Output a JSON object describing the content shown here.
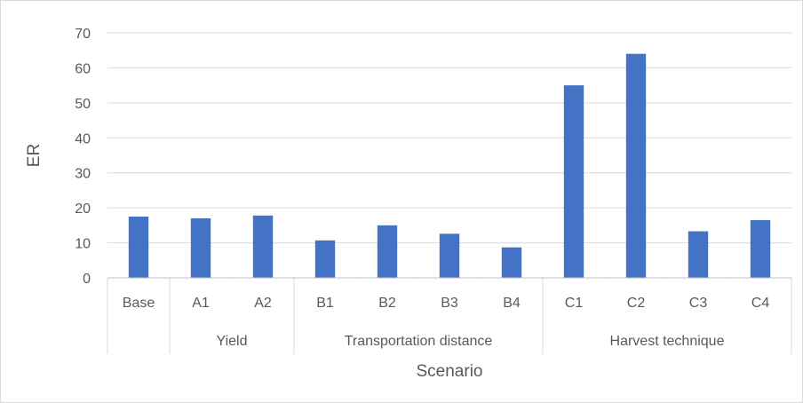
{
  "chart_data": {
    "type": "bar",
    "title": "",
    "xlabel": "Scenario",
    "ylabel": "ER",
    "ylim": [
      0,
      70
    ],
    "yticks": [
      0,
      10,
      20,
      30,
      40,
      50,
      60,
      70
    ],
    "grid": true,
    "bar_color": "#4472C4",
    "categories": [
      "Base",
      "A1",
      "A2",
      "B1",
      "B2",
      "B3",
      "B4",
      "C1",
      "C2",
      "C3",
      "C4"
    ],
    "values": [
      17.5,
      17.0,
      17.8,
      10.7,
      15.0,
      12.6,
      8.7,
      55.0,
      64.0,
      13.3,
      16.5
    ],
    "groups": [
      {
        "label": "",
        "categories": [
          "Base"
        ]
      },
      {
        "label": "Yield",
        "categories": [
          "A1",
          "A2"
        ]
      },
      {
        "label": "Transportation distance",
        "categories": [
          "B1",
          "B2",
          "B3",
          "B4"
        ]
      },
      {
        "label": "Harvest technique",
        "categories": [
          "C1",
          "C2",
          "C3",
          "C4"
        ]
      }
    ]
  }
}
